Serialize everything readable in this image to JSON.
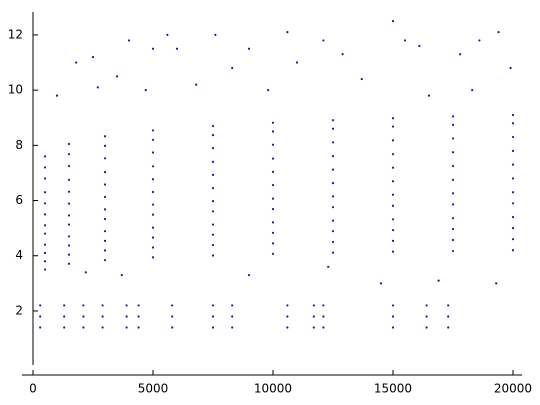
{
  "chart_data": {
    "type": "scatter",
    "color": "#1a1a8c",
    "xlim": [
      -458,
      20375
    ],
    "ylim": [
      -0.32,
      12.83
    ],
    "xticks": [
      0,
      5000,
      10000,
      15000,
      20000
    ],
    "yticks": [
      2,
      4,
      6,
      8,
      10,
      12
    ],
    "grid": false,
    "series": [
      {
        "color": "#1a1a8c",
        "x": [
          500,
          1500,
          3000,
          5000,
          7500,
          10000,
          12500,
          15000,
          17500,
          20000,
          500,
          1500,
          3000,
          5000,
          7500,
          10000,
          12500,
          15000,
          17500,
          20000,
          500,
          1500,
          3000,
          5000,
          7500,
          10000,
          12500,
          15000,
          17500,
          20000,
          500,
          1500,
          3000,
          5000,
          7500,
          10000,
          12500,
          15000,
          17500,
          20000,
          500,
          1500,
          3000,
          5000,
          7500,
          10000,
          12500,
          15000,
          17500,
          20000,
          500,
          1500,
          3000,
          5000,
          7500,
          10000,
          12500,
          15000,
          17500,
          20000,
          500,
          1500,
          3000,
          5000,
          7500,
          10000,
          12500,
          15000,
          17500,
          20000,
          500,
          1500,
          3000,
          5000,
          7500,
          10000,
          12500,
          15000,
          17500,
          20000,
          500,
          1500,
          3000,
          5000,
          7500,
          10000,
          12500,
          15000,
          17500,
          20000,
          500,
          1500,
          3000,
          5000,
          7500,
          10000,
          12500,
          15000,
          17500,
          20000,
          500,
          1500,
          3000,
          5000,
          7500,
          10000,
          12500,
          15000,
          17500,
          20000,
          500,
          1500,
          3000,
          5000,
          7500,
          10000,
          12500,
          15000,
          17500,
          20000,
          300,
          300,
          300,
          1300,
          1300,
          1300,
          2100,
          2100,
          2100,
          2900,
          2900,
          2900,
          3900,
          3900,
          3900,
          4400,
          4400,
          4400,
          5800,
          5800,
          5800,
          7500,
          7500,
          7500,
          8300,
          8300,
          8300,
          10600,
          10600,
          10600,
          11700,
          11700,
          11700,
          12100,
          12100,
          12100,
          15000,
          15000,
          15000,
          16400,
          16400,
          16400,
          17300,
          17300,
          17300,
          1800,
          2500,
          3500,
          4000,
          5000,
          5600,
          6000,
          7600,
          8300,
          9000,
          10600,
          11000,
          12100,
          12900,
          15000,
          15500,
          16100,
          17800,
          18600,
          19400,
          19900,
          1000,
          2700,
          4700,
          6800,
          9800,
          13700,
          16500,
          18300,
          19300,
          14500,
          9000,
          3700,
          2200,
          16900,
          12300
        ],
        "y": [
          3.5,
          3.71,
          3.84,
          3.94,
          4.01,
          4.07,
          4.11,
          4.15,
          4.17,
          4.2,
          3.8,
          4.04,
          4.19,
          4.3,
          4.39,
          4.45,
          4.5,
          4.54,
          4.57,
          4.6,
          4.1,
          4.37,
          4.54,
          4.66,
          4.76,
          4.83,
          4.89,
          4.93,
          4.97,
          5.0,
          4.4,
          4.7,
          4.89,
          5.02,
          5.13,
          5.21,
          5.27,
          5.32,
          5.36,
          5.4,
          4.8,
          5.13,
          5.33,
          5.49,
          5.61,
          5.69,
          5.76,
          5.81,
          5.86,
          5.9,
          5.1,
          5.46,
          5.68,
          5.85,
          5.98,
          6.07,
          6.15,
          6.21,
          6.26,
          6.3,
          5.5,
          5.89,
          6.13,
          6.31,
          6.45,
          6.56,
          6.63,
          6.7,
          6.75,
          6.8,
          5.9,
          6.32,
          6.58,
          6.77,
          6.93,
          7.04,
          7.12,
          7.19,
          7.25,
          7.3,
          6.3,
          6.75,
          7.03,
          7.24,
          7.4,
          7.52,
          7.61,
          7.68,
          7.75,
          7.8,
          6.8,
          7.25,
          7.53,
          7.74,
          7.9,
          8.02,
          8.11,
          8.18,
          8.25,
          8.3,
          7.2,
          7.68,
          7.98,
          8.2,
          8.37,
          8.5,
          8.6,
          8.68,
          8.74,
          8.8,
          7.6,
          8.05,
          8.33,
          8.54,
          8.7,
          8.82,
          8.91,
          8.98,
          9.05,
          9.1,
          1.4,
          1.8,
          2.2,
          1.4,
          1.8,
          2.2,
          1.4,
          1.8,
          2.2,
          1.4,
          1.8,
          2.2,
          1.4,
          1.8,
          2.2,
          1.4,
          1.8,
          2.2,
          1.4,
          1.8,
          2.2,
          1.4,
          1.8,
          2.2,
          1.4,
          1.8,
          2.2,
          1.4,
          1.8,
          2.2,
          1.4,
          1.8,
          2.2,
          1.4,
          1.8,
          2.2,
          1.4,
          1.8,
          2.2,
          1.4,
          1.8,
          2.2,
          1.4,
          1.8,
          2.2,
          11.0,
          11.2,
          10.5,
          11.8,
          11.5,
          12.0,
          11.5,
          12.0,
          10.8,
          11.5,
          12.1,
          11.0,
          11.8,
          11.3,
          12.5,
          11.8,
          11.6,
          11.3,
          11.8,
          12.1,
          10.8,
          9.8,
          10.1,
          10.0,
          10.2,
          10.0,
          10.4,
          9.8,
          10.0,
          3.0,
          3.0,
          3.3,
          3.3,
          3.4,
          3.1,
          3.6
        ]
      }
    ]
  }
}
